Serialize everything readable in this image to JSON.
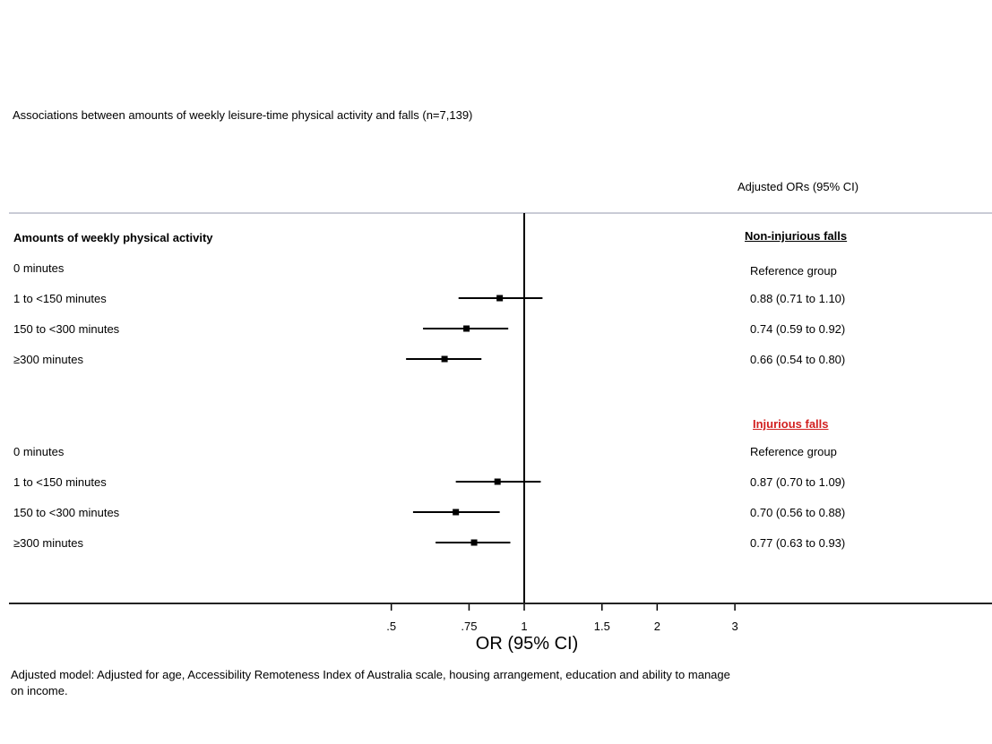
{
  "chart_data": {
    "type": "forest",
    "title": "Associations between amounts of weekly leisure-time physical activity and falls (n=7,139)",
    "column_header": "Adjusted ORs (95% CI)",
    "left_heading": "Amounts of weekly physical activity",
    "xlabel": "OR (95% CI)",
    "x_scale": "log",
    "reference_line": 1,
    "ticks": [
      {
        "value": 0.5,
        "label": ".5"
      },
      {
        "value": 0.75,
        "label": ".75"
      },
      {
        "value": 1,
        "label": "1"
      },
      {
        "value": 1.5,
        "label": "1.5"
      },
      {
        "value": 2,
        "label": "2"
      },
      {
        "value": 3,
        "label": "3"
      }
    ],
    "sections": [
      {
        "title": "Non-injurious falls",
        "rows": [
          {
            "label": "0 minutes",
            "estimate_text": "Reference group",
            "or": null,
            "lo": null,
            "hi": null
          },
          {
            "label": "1 to <150 minutes",
            "estimate_text": "0.88 (0.71 to 1.10)",
            "or": 0.88,
            "lo": 0.71,
            "hi": 1.1
          },
          {
            "label": "150 to <300 minutes",
            "estimate_text": "0.74 (0.59 to 0.92)",
            "or": 0.74,
            "lo": 0.59,
            "hi": 0.92
          },
          {
            "label": "≥300 minutes",
            "estimate_text": "0.66 (0.54 to 0.80)",
            "or": 0.66,
            "lo": 0.54,
            "hi": 0.8
          }
        ]
      },
      {
        "title": "Injurious falls",
        "rows": [
          {
            "label": "0 minutes",
            "estimate_text": "Reference group",
            "or": null,
            "lo": null,
            "hi": null
          },
          {
            "label": "1 to <150 minutes",
            "estimate_text": "0.87 (0.70 to 1.09)",
            "or": 0.87,
            "lo": 0.7,
            "hi": 1.09
          },
          {
            "label": "150 to <300 minutes",
            "estimate_text": "0.70 (0.56 to 0.88)",
            "or": 0.7,
            "lo": 0.56,
            "hi": 0.88
          },
          {
            "label": "≥300 minutes",
            "estimate_text": "0.77 (0.63 to 0.93)",
            "or": 0.77,
            "lo": 0.63,
            "hi": 0.93
          }
        ]
      }
    ],
    "footnote": "Adjusted model: Adjusted for age, Accessibility Remoteness Index of Australia scale, housing arrangement, education and ability to manage on income.",
    "colors": {
      "section_0_title": "#000000",
      "section_1_title": "#d21f1f"
    }
  }
}
